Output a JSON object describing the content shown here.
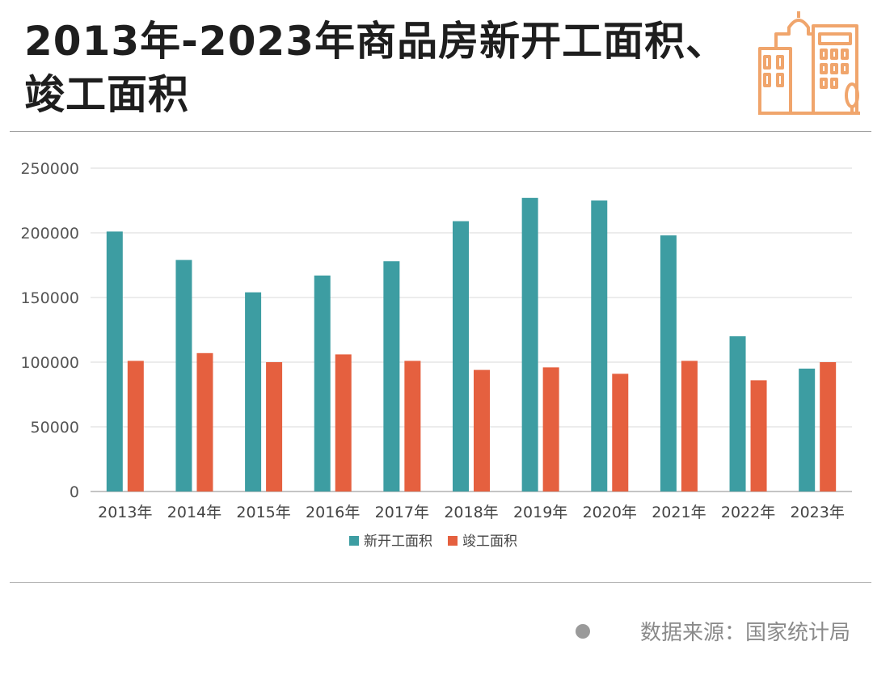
{
  "title": "2013年-2023年商品房新开工面积、竣工面积",
  "source": "数据来源：国家统计局",
  "colors": {
    "series1": "#3d9da2",
    "series2": "#e5603f",
    "grid": "#e6e6e6",
    "axis": "#b0b0b0",
    "accent_icon": "#f0a56c"
  },
  "icon": "city-buildings-icon",
  "chart_data": {
    "type": "bar",
    "categories": [
      "2013年",
      "2014年",
      "2015年",
      "2016年",
      "2017年",
      "2018年",
      "2019年",
      "2020年",
      "2021年",
      "2022年",
      "2023年"
    ],
    "series": [
      {
        "name": "新开工面积",
        "values": [
          201000,
          179000,
          154000,
          167000,
          178000,
          209000,
          227000,
          225000,
          198000,
          120000,
          95000
        ]
      },
      {
        "name": "竣工面积",
        "values": [
          101000,
          107000,
          100000,
          106000,
          101000,
          94000,
          96000,
          91000,
          101000,
          86000,
          100000
        ]
      }
    ],
    "yticks": [
      "0",
      "50000",
      "100000",
      "150000",
      "200000",
      "250000"
    ],
    "ylim": [
      0,
      250000
    ],
    "grid": true,
    "legend": "bottom-center"
  }
}
